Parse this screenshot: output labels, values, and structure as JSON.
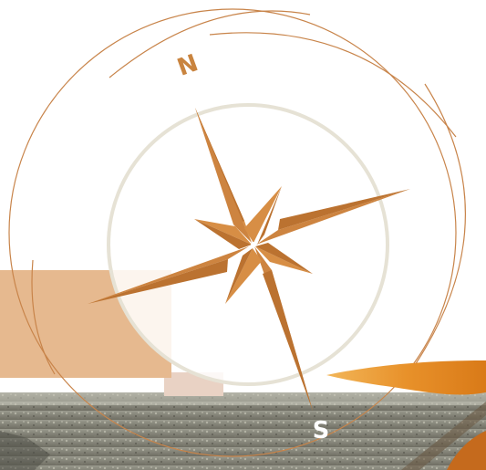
{
  "compass": {
    "north_label": "N",
    "south_label": "S"
  },
  "colors": {
    "accent": "#c9843f",
    "star_light": "#d78e45",
    "star_dark": "#bb7230",
    "ring": "#c8844a",
    "inner_ring": "#e6e2d5",
    "band": "#e6b98f",
    "swoosh": "#e8912a",
    "label_south": "#ffffff"
  }
}
